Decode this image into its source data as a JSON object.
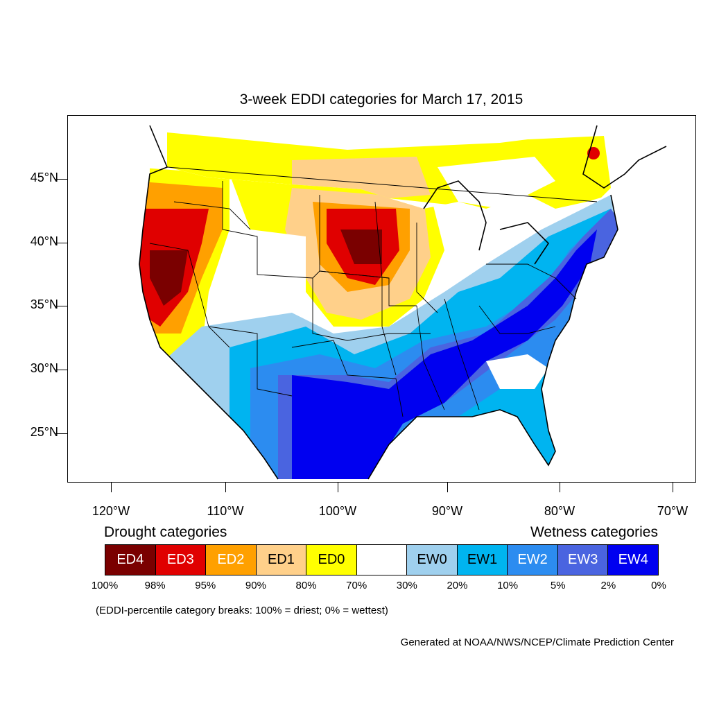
{
  "title": "3-week EDDI categories for March 17, 2015",
  "lat_labels": [
    "45°N",
    "40°N",
    "35°N",
    "30°N",
    "25°N"
  ],
  "lon_labels": [
    "120°W",
    "110°W",
    "100°W",
    "90°W",
    "80°W",
    "70°W"
  ],
  "legend": {
    "drought_heading": "Drought categories",
    "wetness_heading": "Wetness categories",
    "categories": [
      {
        "label": "ED4",
        "color": "#7a0000",
        "text_color": "#ffffff"
      },
      {
        "label": "ED3",
        "color": "#e00000",
        "text_color": "#ffffff"
      },
      {
        "label": "ED2",
        "color": "#ffa000",
        "text_color": "#ffffff"
      },
      {
        "label": "ED1",
        "color": "#ffd08a",
        "text_color": "#000000"
      },
      {
        "label": "ED0",
        "color": "#ffff00",
        "text_color": "#000000"
      },
      {
        "label": "",
        "color": "#ffffff",
        "text_color": "#000000"
      },
      {
        "label": "EW0",
        "color": "#9fd0ee",
        "text_color": "#000000"
      },
      {
        "label": "EW1",
        "color": "#00b4f0",
        "text_color": "#000000"
      },
      {
        "label": "EW2",
        "color": "#2c8cf0",
        "text_color": "#ffffff"
      },
      {
        "label": "EW3",
        "color": "#4a64e0",
        "text_color": "#ffffff"
      },
      {
        "label": "EW4",
        "color": "#0000f0",
        "text_color": "#ffffff"
      }
    ],
    "breaks": [
      "100%",
      "98%",
      "95%",
      "90%",
      "80%",
      "70%",
      "30%",
      "20%",
      "10%",
      "5%",
      "2%",
      "0%"
    ]
  },
  "note": "(EDDI-percentile category breaks: 100% = driest; 0% = wettest)",
  "credit": "Generated at NOAA/NWS/NCEP/Climate Prediction Center"
}
